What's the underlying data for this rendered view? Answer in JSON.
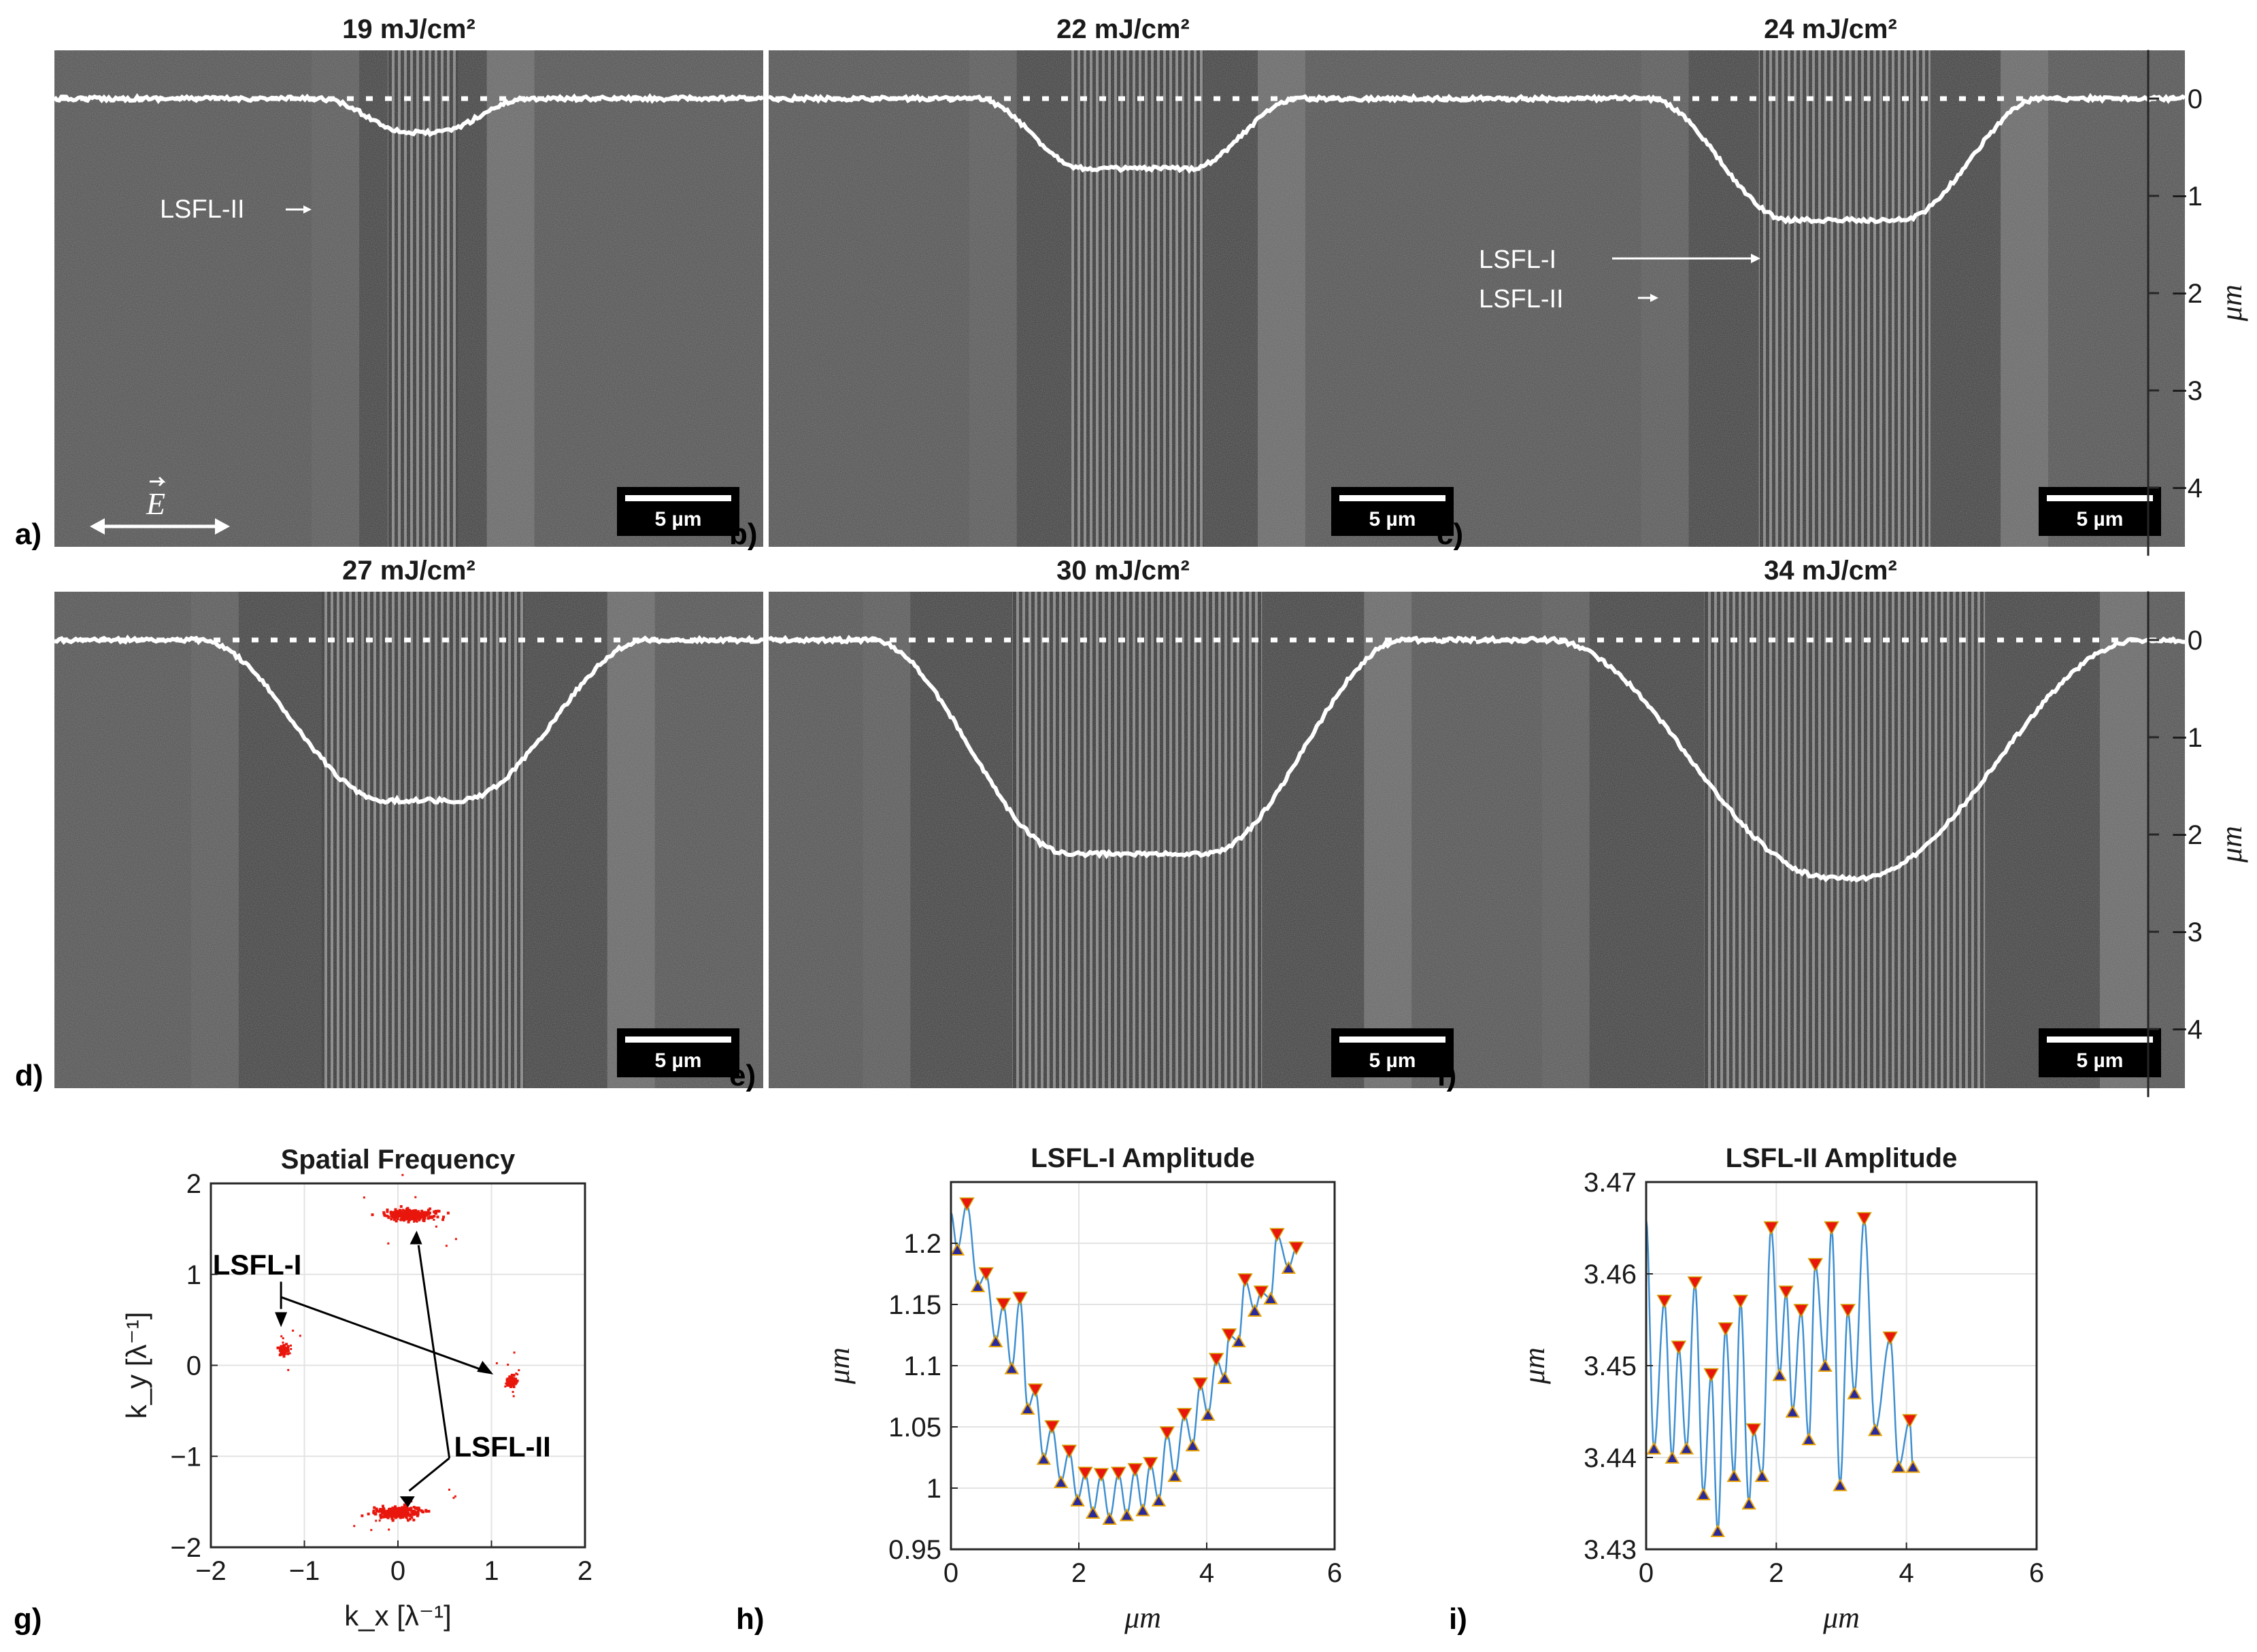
{
  "sem_panels": [
    {
      "id": "a",
      "label": "a)",
      "title": "19 mJ/cm²",
      "depth_um": -0.35,
      "halfwidth": 0.09,
      "flat": 0.16,
      "scalebar": "5 µm",
      "annotations": [
        "LSFL-II"
      ],
      "polarization": "E"
    },
    {
      "id": "b",
      "label": "b)",
      "title": "22 mJ/cm²",
      "depth_um": -0.72,
      "halfwidth": 0.17,
      "flat": 0.42,
      "scalebar": "5 µm",
      "annotations": []
    },
    {
      "id": "c",
      "label": "c)",
      "title": "24 mJ/cm²",
      "depth_um": -1.25,
      "halfwidth": 0.22,
      "flat": 0.35,
      "scalebar": "5 µm",
      "annotations": [
        "LSFL-I",
        "LSFL-II"
      ]
    },
    {
      "id": "d",
      "label": "d)",
      "title": "27 mJ/cm²",
      "depth_um": -1.65,
      "halfwidth": 0.26,
      "flat": 0.2,
      "scalebar": "5 µm",
      "annotations": []
    },
    {
      "id": "e",
      "label": "e)",
      "title": "30 mJ/cm²",
      "depth_um": -2.2,
      "halfwidth": 0.32,
      "flat": 0.3,
      "scalebar": "5 µm",
      "annotations": []
    },
    {
      "id": "f",
      "label": "f)",
      "title": "34 mJ/cm²",
      "depth_um": -2.45,
      "halfwidth": 0.36,
      "flat": 0.05,
      "scalebar": "5 µm",
      "annotations": []
    }
  ],
  "depth_axis": {
    "ticks": [
      0,
      -1,
      -2,
      -3,
      -4
    ],
    "label": "μm",
    "range": [
      -4.7,
      0.5
    ]
  },
  "chart_data": [
    {
      "id": "g",
      "label": "g)",
      "type": "scatter",
      "title": "Spatial Frequency",
      "xlabel": "k_x [λ⁻¹]",
      "ylabel": "k_y [λ⁻¹]",
      "xlim": [
        -2,
        2
      ],
      "ylim": [
        -2,
        2
      ],
      "xticks": [
        -2,
        -1,
        0,
        1,
        2
      ],
      "yticks": [
        -2,
        -1,
        0,
        1,
        2
      ],
      "grid": true,
      "clusters": [
        {
          "x": 0.15,
          "y": 1.65,
          "sx": 0.22,
          "sy": 0.05,
          "n": 260
        },
        {
          "x": 0.0,
          "y": -1.62,
          "sx": 0.22,
          "sy": 0.05,
          "n": 260
        },
        {
          "x": -1.22,
          "y": 0.18,
          "sx": 0.04,
          "sy": 0.05,
          "n": 60
        },
        {
          "x": 1.22,
          "y": -0.17,
          "sx": 0.04,
          "sy": 0.05,
          "n": 60
        }
      ],
      "annotations": [
        "LSFL-I",
        "LSFL-II"
      ]
    },
    {
      "id": "h",
      "label": "h)",
      "type": "line",
      "title": "LSFL-I Amplitude",
      "xlabel": "μm",
      "ylabel": "μm",
      "xlim": [
        0,
        6
      ],
      "ylim": [
        0.95,
        1.25
      ],
      "xticks": [
        0,
        2,
        4,
        6
      ],
      "yticks": [
        0.95,
        1,
        1.05,
        1.1,
        1.15,
        1.2
      ],
      "ytick_labels": [
        "0.95",
        "1",
        "1.05",
        "1.1",
        "1.15",
        "1.2"
      ],
      "grid": true,
      "x_start": 0,
      "x_end": 5.45,
      "maxima": [
        [
          0.25,
          1.232
        ],
        [
          0.55,
          1.175
        ],
        [
          0.82,
          1.15
        ],
        [
          1.08,
          1.155
        ],
        [
          1.32,
          1.08
        ],
        [
          1.58,
          1.05
        ],
        [
          1.85,
          1.03
        ],
        [
          2.1,
          1.012
        ],
        [
          2.35,
          1.011
        ],
        [
          2.62,
          1.012
        ],
        [
          2.88,
          1.015
        ],
        [
          3.12,
          1.02
        ],
        [
          3.38,
          1.045
        ],
        [
          3.65,
          1.06
        ],
        [
          3.9,
          1.085
        ],
        [
          4.15,
          1.105
        ],
        [
          4.35,
          1.125
        ],
        [
          4.6,
          1.17
        ],
        [
          4.85,
          1.16
        ],
        [
          5.1,
          1.207
        ],
        [
          5.4,
          1.196
        ]
      ],
      "minima": [
        [
          0.1,
          1.195
        ],
        [
          0.42,
          1.165
        ],
        [
          0.7,
          1.12
        ],
        [
          0.95,
          1.098
        ],
        [
          1.2,
          1.065
        ],
        [
          1.45,
          1.024
        ],
        [
          1.72,
          1.005
        ],
        [
          1.98,
          0.99
        ],
        [
          2.22,
          0.98
        ],
        [
          2.48,
          0.975
        ],
        [
          2.75,
          0.978
        ],
        [
          3.0,
          0.982
        ],
        [
          3.25,
          0.99
        ],
        [
          3.5,
          1.01
        ],
        [
          3.78,
          1.035
        ],
        [
          4.02,
          1.06
        ],
        [
          4.28,
          1.09
        ],
        [
          4.5,
          1.12
        ],
        [
          4.75,
          1.145
        ],
        [
          5.0,
          1.155
        ],
        [
          5.28,
          1.18
        ]
      ]
    },
    {
      "id": "i",
      "label": "i)",
      "type": "line",
      "title": "LSFL-II Amplitude",
      "xlabel": "μm",
      "ylabel": "μm",
      "xlim": [
        0,
        6
      ],
      "ylim": [
        3.43,
        3.47
      ],
      "xticks": [
        0,
        2,
        4,
        6
      ],
      "yticks": [
        3.43,
        3.44,
        3.45,
        3.46,
        3.47
      ],
      "ytick_labels": [
        "3.43",
        "3.44",
        "3.45",
        "3.46",
        "3.47"
      ],
      "grid": true,
      "x_start": 0,
      "x_end": 4.15,
      "maxima": [
        [
          0.28,
          3.457
        ],
        [
          0.5,
          3.452
        ],
        [
          0.75,
          3.459
        ],
        [
          1.0,
          3.449
        ],
        [
          1.22,
          3.454
        ],
        [
          1.45,
          3.457
        ],
        [
          1.65,
          3.443
        ],
        [
          1.92,
          3.465
        ],
        [
          2.15,
          3.458
        ],
        [
          2.38,
          3.456
        ],
        [
          2.6,
          3.461
        ],
        [
          2.85,
          3.465
        ],
        [
          3.1,
          3.456
        ],
        [
          3.35,
          3.466
        ],
        [
          3.75,
          3.453
        ],
        [
          4.05,
          3.444
        ]
      ],
      "minima": [
        [
          0.12,
          3.441
        ],
        [
          0.4,
          3.44
        ],
        [
          0.62,
          3.441
        ],
        [
          0.88,
          3.436
        ],
        [
          1.1,
          3.432
        ],
        [
          1.35,
          3.438
        ],
        [
          1.58,
          3.435
        ],
        [
          1.78,
          3.438
        ],
        [
          2.05,
          3.449
        ],
        [
          2.25,
          3.445
        ],
        [
          2.5,
          3.442
        ],
        [
          2.75,
          3.45
        ],
        [
          2.98,
          3.437
        ],
        [
          3.2,
          3.447
        ],
        [
          3.52,
          3.443
        ],
        [
          3.88,
          3.439
        ],
        [
          4.1,
          3.439
        ]
      ]
    }
  ]
}
